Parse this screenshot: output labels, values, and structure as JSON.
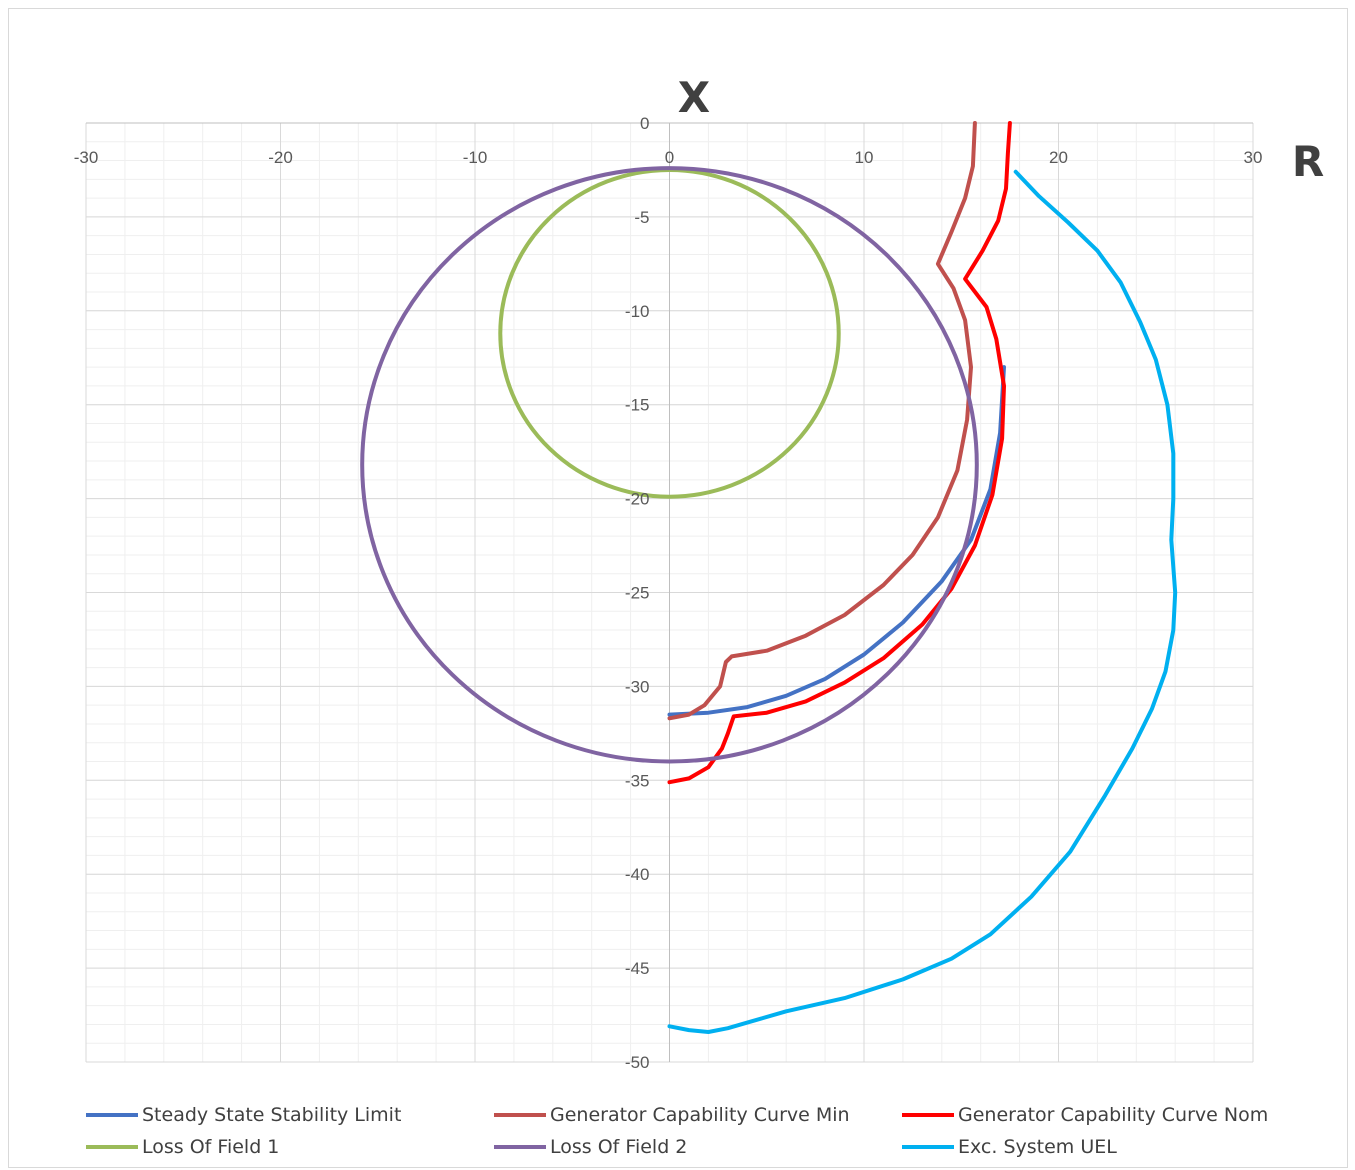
{
  "chart_data": {
    "type": "line",
    "title": "",
    "xlabel": "R",
    "ylabel": "X",
    "xlim": [
      -30,
      30
    ],
    "ylim": [
      -50,
      0
    ],
    "x_ticks": [
      "-30",
      "-20",
      "-10",
      "0",
      "10",
      "20",
      "30"
    ],
    "y_ticks": [
      "0",
      "-5",
      "-10",
      "-15",
      "-20",
      "-25",
      "-30",
      "-35",
      "-40",
      "-45",
      "-50"
    ],
    "grid": true,
    "legend_position": "bottom",
    "series": [
      {
        "name": "Steady State Stability Limit",
        "color": "#4472c4",
        "points": [
          [
            0,
            -31.5
          ],
          [
            2,
            -31.4
          ],
          [
            4,
            -31.1
          ],
          [
            6,
            -30.5
          ],
          [
            8,
            -29.6
          ],
          [
            10,
            -28.3
          ],
          [
            12,
            -26.6
          ],
          [
            14,
            -24.4
          ],
          [
            15.5,
            -22.2
          ],
          [
            16.5,
            -19.5
          ],
          [
            17,
            -16.5
          ],
          [
            17.2,
            -13
          ]
        ]
      },
      {
        "name": "Generator Capability Curve Min",
        "color": "#c0504d",
        "points": [
          [
            0,
            -31.7
          ],
          [
            1,
            -31.5
          ],
          [
            1.8,
            -31.0
          ],
          [
            2.6,
            -30.0
          ],
          [
            2.9,
            -28.7
          ],
          [
            3.2,
            -28.4
          ],
          [
            5,
            -28.1
          ],
          [
            7,
            -27.3
          ],
          [
            9,
            -26.2
          ],
          [
            11,
            -24.6
          ],
          [
            12.5,
            -23
          ],
          [
            13.8,
            -21
          ],
          [
            14.8,
            -18.5
          ],
          [
            15.3,
            -15.8
          ],
          [
            15.5,
            -13
          ],
          [
            15.2,
            -10.5
          ],
          [
            14.6,
            -8.8
          ],
          [
            13.8,
            -7.5
          ],
          [
            14.5,
            -5.8
          ],
          [
            15.2,
            -4
          ],
          [
            15.6,
            -2.3
          ],
          [
            15.7,
            0
          ]
        ]
      },
      {
        "name": "Generator Capability Curve Nom",
        "color": "#ff0000",
        "points": [
          [
            0,
            -35.1
          ],
          [
            1,
            -34.9
          ],
          [
            2,
            -34.3
          ],
          [
            2.7,
            -33.3
          ],
          [
            3,
            -32.5
          ],
          [
            3.3,
            -31.6
          ],
          [
            5,
            -31.4
          ],
          [
            7,
            -30.8
          ],
          [
            9,
            -29.8
          ],
          [
            11,
            -28.5
          ],
          [
            13,
            -26.7
          ],
          [
            14.5,
            -24.8
          ],
          [
            15.7,
            -22.5
          ],
          [
            16.6,
            -19.8
          ],
          [
            17.1,
            -16.8
          ],
          [
            17.2,
            -14
          ],
          [
            16.8,
            -11.5
          ],
          [
            16.3,
            -9.8
          ],
          [
            15.2,
            -8.3
          ],
          [
            16.1,
            -6.8
          ],
          [
            16.9,
            -5.2
          ],
          [
            17.3,
            -3.5
          ],
          [
            17.4,
            -1.6
          ],
          [
            17.5,
            0
          ]
        ]
      },
      {
        "name": "Loss Of Field 1",
        "color": "#9bbb59",
        "circle": {
          "center": [
            0,
            -11.2
          ],
          "radius": 8.7
        }
      },
      {
        "name": "Loss Of Field 2",
        "color": "#8064a2",
        "circle": {
          "center": [
            0,
            -18.2
          ],
          "radius": 15.8
        }
      },
      {
        "name": "Exc. System UEL",
        "color": "#00b0f0",
        "points": [
          [
            17.8,
            -2.6
          ],
          [
            19,
            -3.9
          ],
          [
            20.5,
            -5.3
          ],
          [
            22,
            -6.8
          ],
          [
            23.2,
            -8.5
          ],
          [
            24.2,
            -10.6
          ],
          [
            25,
            -12.6
          ],
          [
            25.6,
            -15
          ],
          [
            25.9,
            -17.6
          ],
          [
            25.9,
            -20
          ],
          [
            25.8,
            -22.2
          ],
          [
            26,
            -25
          ],
          [
            25.9,
            -27
          ],
          [
            25.5,
            -29.2
          ],
          [
            24.8,
            -31.2
          ],
          [
            23.8,
            -33.3
          ],
          [
            22.4,
            -35.8
          ],
          [
            20.6,
            -38.8
          ],
          [
            18.6,
            -41.2
          ],
          [
            16.5,
            -43.2
          ],
          [
            14.5,
            -44.5
          ],
          [
            12,
            -45.6
          ],
          [
            9,
            -46.6
          ],
          [
            6,
            -47.3
          ],
          [
            4,
            -47.9
          ],
          [
            3,
            -48.2
          ],
          [
            2,
            -48.4
          ],
          [
            1,
            -48.3
          ],
          [
            0,
            -48.1
          ]
        ]
      }
    ]
  }
}
